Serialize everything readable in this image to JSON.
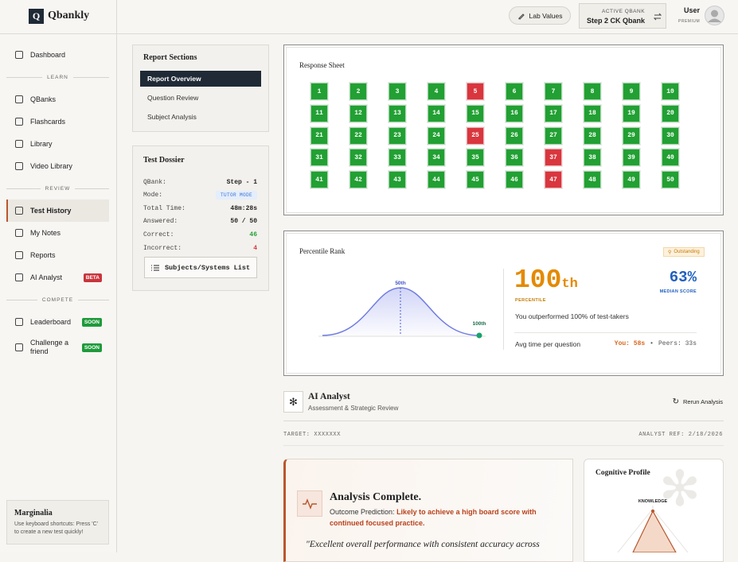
{
  "sidebar": {
    "logo_letter": "Q",
    "brand": "Qbankly",
    "nav": [
      {
        "label": "Dashboard"
      }
    ],
    "sections": [
      {
        "title": "LEARN",
        "items": [
          {
            "label": "QBanks"
          },
          {
            "label": "Flashcards"
          },
          {
            "label": "Library"
          },
          {
            "label": "Video Library"
          }
        ]
      },
      {
        "title": "REVIEW",
        "items": [
          {
            "label": "Test History",
            "active": true
          },
          {
            "label": "My Notes"
          },
          {
            "label": "Reports"
          },
          {
            "label": "AI Analyst",
            "badge": "BETA"
          }
        ]
      },
      {
        "title": "COMPETE",
        "items": [
          {
            "label": "Leaderboard",
            "badge": "SOON"
          },
          {
            "label": "Challenge a friend",
            "badge": "SOON"
          }
        ]
      }
    ],
    "tip": {
      "title": "Marginalia",
      "text": "Use keyboard shortcuts: Press 'C' to create a new test quickly!"
    }
  },
  "header": {
    "lab_values": "Lab Values",
    "active_qbank_label": "ACTIVE QBANK",
    "active_qbank": "Step 2 CK Qbank",
    "user": "User",
    "plan": "PREMIUM"
  },
  "report_sections": {
    "title": "Report Sections",
    "items": [
      "Report Overview",
      "Question Review",
      "Subject Analysis"
    ],
    "active": 0
  },
  "test_dossier": {
    "title": "Test Dossier",
    "rows": [
      {
        "label": "QBank:",
        "value": "Step - 1"
      },
      {
        "label": "Mode:",
        "value": "TUTOR MODE",
        "badge": true
      },
      {
        "label": "Total Time:",
        "value": "48m:28s"
      },
      {
        "label": "Answered:",
        "value": "50 / 50"
      },
      {
        "label": "Correct:",
        "value": "46",
        "color": "#22a033"
      },
      {
        "label": "Incorrect:",
        "value": "4",
        "color": "#d9363e"
      }
    ],
    "button": "Subjects/Systems List"
  },
  "response_sheet": {
    "title": "Response Sheet",
    "questions": [
      1,
      2,
      3,
      4,
      5,
      6,
      7,
      8,
      9,
      10,
      11,
      12,
      13,
      14,
      15,
      16,
      17,
      18,
      19,
      20,
      21,
      22,
      23,
      24,
      25,
      26,
      27,
      28,
      29,
      30,
      31,
      32,
      33,
      34,
      35,
      36,
      37,
      38,
      39,
      40,
      41,
      42,
      43,
      44,
      45,
      46,
      47,
      48,
      49,
      50
    ],
    "incorrect": [
      5,
      25,
      37,
      47
    ],
    "correct_color": "#22a033",
    "incorrect_color": "#d9363e"
  },
  "percentile": {
    "title": "Percentile Rank",
    "badge": "Outstanding",
    "curve_mid_label": "50th",
    "curve_end_label": "100th",
    "value": "100",
    "suffix": "th",
    "value_caption": "PERCENTILE",
    "median": "63%",
    "median_caption": "MEDIAN SCORE",
    "summary": "You outperformed 100% of test-takers",
    "avg_label": "Avg time per question",
    "you": "You: 58s",
    "separator": "•",
    "peers": "Peers: 33s"
  },
  "ai_analyst": {
    "title": "AI Analyst",
    "subtitle": "Assessment & Strategic Review",
    "rerun": "Rerun Analysis",
    "target": "TARGET: XXXXXXX",
    "ref": "ANALYST REF: 2/18/2026",
    "analysis": {
      "title": "Analysis Complete.",
      "prediction_label": "Outcome Prediction:",
      "prediction": "Likely to achieve a high board score with continued focused practice.",
      "quote": "\"Excellent overall performance with consistent accuracy across"
    },
    "cognitive_profile": {
      "title": "Cognitive Profile",
      "axis_label": "KNOWLEDGE"
    }
  }
}
